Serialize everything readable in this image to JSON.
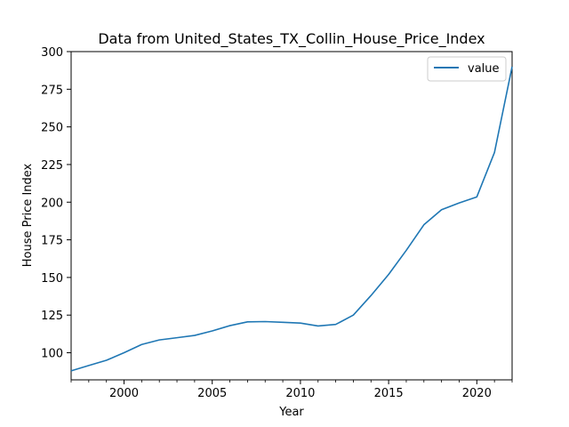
{
  "chart_data": {
    "type": "line",
    "title": "Data from United_States_TX_Collin_House_Price_Index",
    "xlabel": "Year",
    "ylabel": "House Price Index",
    "xlim": [
      1997,
      2022
    ],
    "ylim": [
      82,
      300
    ],
    "x_ticks": [
      2000,
      2005,
      2010,
      2015,
      2020
    ],
    "x_tick_labels": [
      "2000",
      "2005",
      "2010",
      "2015",
      "2020"
    ],
    "y_ticks": [
      100,
      125,
      150,
      175,
      200,
      225,
      250,
      275,
      300
    ],
    "y_tick_labels": [
      "100",
      "125",
      "150",
      "175",
      "200",
      "225",
      "250",
      "275",
      "300"
    ],
    "legend_position": "top-right",
    "grid": false,
    "line_color": "#1f77b4",
    "series": [
      {
        "name": "value",
        "x": [
          1997,
          1998,
          1999,
          2000,
          2001,
          2002,
          2003,
          2004,
          2005,
          2006,
          2007,
          2008,
          2009,
          2010,
          2011,
          2012,
          2013,
          2014,
          2015,
          2016,
          2017,
          2018,
          2019,
          2020,
          2021,
          2022
        ],
        "y": [
          88,
          91.5,
          95,
          100,
          105.5,
          108.5,
          110,
          111.5,
          114.5,
          118,
          120.5,
          120.7,
          120.2,
          119.7,
          117.8,
          118.8,
          125,
          138,
          152,
          168,
          185,
          195,
          199.5,
          203.5,
          233,
          290
        ]
      }
    ]
  }
}
